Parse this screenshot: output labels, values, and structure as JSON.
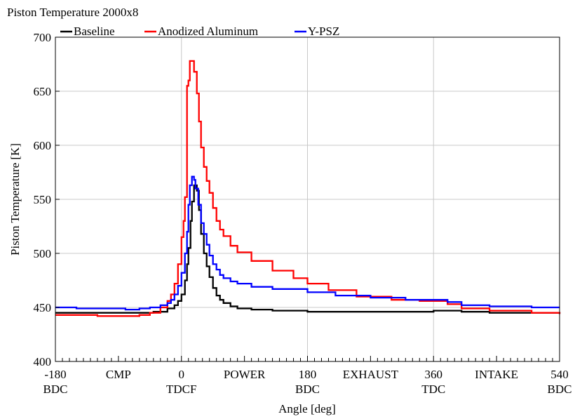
{
  "chart_data": {
    "type": "line",
    "title": "Piston Temperature 2000x8",
    "xlabel": "Angle [deg]",
    "ylabel": "Piston Temperature [K]",
    "xlim": [
      -180,
      540
    ],
    "ylim": [
      400,
      700
    ],
    "grid": true,
    "legend_position": "top-left",
    "y_ticks": [
      400,
      450,
      500,
      550,
      600,
      650,
      700
    ],
    "x_ticks": [
      {
        "value": -180,
        "label": "-180",
        "sublabel": "BDC"
      },
      {
        "value": 0,
        "label": "0",
        "sublabel": "TDCF"
      },
      {
        "value": 180,
        "label": "180",
        "sublabel": "BDC"
      },
      {
        "value": 360,
        "label": "360",
        "sublabel": "TDC"
      },
      {
        "value": 540,
        "label": "540",
        "sublabel": "BDC"
      }
    ],
    "phase_labels": [
      {
        "value": -90,
        "label": "CMP"
      },
      {
        "value": 90,
        "label": "POWER"
      },
      {
        "value": 270,
        "label": "EXHAUST"
      },
      {
        "value": 450,
        "label": "INTAKE"
      }
    ],
    "series": [
      {
        "name": "Baseline",
        "color": "#000000",
        "points": [
          [
            -180,
            445
          ],
          [
            -120,
            445
          ],
          [
            -60,
            445
          ],
          [
            -40,
            446
          ],
          [
            -20,
            449
          ],
          [
            -10,
            452
          ],
          [
            -5,
            456
          ],
          [
            0,
            462
          ],
          [
            5,
            475
          ],
          [
            8,
            490
          ],
          [
            10,
            505
          ],
          [
            13,
            530
          ],
          [
            15,
            548
          ],
          [
            18,
            563
          ],
          [
            20,
            563
          ],
          [
            22,
            558
          ],
          [
            25,
            540
          ],
          [
            28,
            518
          ],
          [
            32,
            500
          ],
          [
            36,
            488
          ],
          [
            40,
            478
          ],
          [
            45,
            468
          ],
          [
            50,
            461
          ],
          [
            55,
            457
          ],
          [
            60,
            454
          ],
          [
            70,
            451
          ],
          [
            80,
            449
          ],
          [
            100,
            448
          ],
          [
            130,
            447
          ],
          [
            180,
            446
          ],
          [
            250,
            446
          ],
          [
            300,
            446
          ],
          [
            340,
            446
          ],
          [
            360,
            447
          ],
          [
            380,
            447
          ],
          [
            400,
            446
          ],
          [
            440,
            445
          ],
          [
            500,
            445
          ],
          [
            540,
            444
          ]
        ]
      },
      {
        "name": "Anodized Aluminum",
        "color": "#ff0000",
        "points": [
          [
            -180,
            443
          ],
          [
            -150,
            443
          ],
          [
            -120,
            442
          ],
          [
            -80,
            442
          ],
          [
            -60,
            443
          ],
          [
            -45,
            445
          ],
          [
            -30,
            450
          ],
          [
            -20,
            456
          ],
          [
            -15,
            462
          ],
          [
            -10,
            472
          ],
          [
            -5,
            490
          ],
          [
            0,
            515
          ],
          [
            3,
            530
          ],
          [
            5,
            552
          ],
          [
            8,
            655
          ],
          [
            10,
            660
          ],
          [
            12,
            678
          ],
          [
            15,
            678
          ],
          [
            18,
            668
          ],
          [
            22,
            648
          ],
          [
            25,
            622
          ],
          [
            28,
            598
          ],
          [
            32,
            580
          ],
          [
            36,
            567
          ],
          [
            40,
            556
          ],
          [
            45,
            542
          ],
          [
            50,
            530
          ],
          [
            55,
            522
          ],
          [
            60,
            516
          ],
          [
            70,
            507
          ],
          [
            80,
            501
          ],
          [
            100,
            493
          ],
          [
            130,
            484
          ],
          [
            160,
            477
          ],
          [
            180,
            472
          ],
          [
            210,
            466
          ],
          [
            250,
            460
          ],
          [
            300,
            457
          ],
          [
            340,
            456
          ],
          [
            360,
            456
          ],
          [
            380,
            453
          ],
          [
            400,
            449
          ],
          [
            440,
            447
          ],
          [
            500,
            445
          ],
          [
            540,
            444
          ]
        ]
      },
      {
        "name": "Y-PSZ",
        "color": "#0000ff",
        "points": [
          [
            -180,
            450
          ],
          [
            -150,
            449
          ],
          [
            -120,
            449
          ],
          [
            -80,
            448
          ],
          [
            -60,
            449
          ],
          [
            -45,
            450
          ],
          [
            -30,
            452
          ],
          [
            -20,
            454
          ],
          [
            -15,
            457
          ],
          [
            -10,
            462
          ],
          [
            -5,
            470
          ],
          [
            0,
            482
          ],
          [
            5,
            500
          ],
          [
            8,
            520
          ],
          [
            10,
            545
          ],
          [
            12,
            563
          ],
          [
            15,
            571
          ],
          [
            18,
            568
          ],
          [
            20,
            560
          ],
          [
            24,
            545
          ],
          [
            28,
            528
          ],
          [
            32,
            518
          ],
          [
            36,
            508
          ],
          [
            40,
            498
          ],
          [
            45,
            490
          ],
          [
            50,
            485
          ],
          [
            55,
            480
          ],
          [
            60,
            477
          ],
          [
            70,
            474
          ],
          [
            80,
            472
          ],
          [
            100,
            469
          ],
          [
            130,
            467
          ],
          [
            180,
            464
          ],
          [
            220,
            461
          ],
          [
            270,
            459
          ],
          [
            320,
            457
          ],
          [
            360,
            457
          ],
          [
            380,
            455
          ],
          [
            400,
            452
          ],
          [
            440,
            451
          ],
          [
            500,
            450
          ],
          [
            540,
            450
          ]
        ]
      }
    ]
  }
}
